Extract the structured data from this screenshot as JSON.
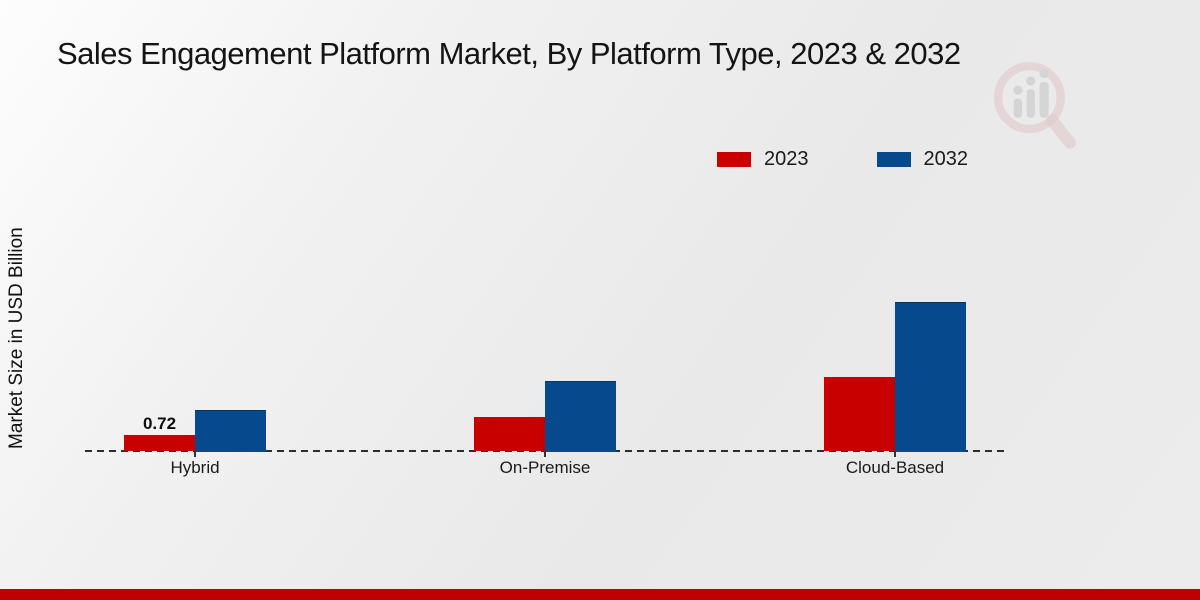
{
  "title": "Sales Engagement Platform Market, By Platform Type, 2023 & 2032",
  "ylabel": "Market Size in USD Billion",
  "chart_data": {
    "type": "bar",
    "title": "Sales Engagement Platform Market, By Platform Type, 2023 & 2032",
    "categories": [
      "Hybrid",
      "On-Premise",
      "Cloud-Based"
    ],
    "series": [
      {
        "name": "2023",
        "color": "#c80000",
        "values": [
          0.72,
          1.55,
          3.4
        ]
      },
      {
        "name": "2032",
        "color": "#06498c",
        "values": [
          1.9,
          3.2,
          6.85
        ]
      }
    ],
    "bar_labels": [
      {
        "category_index": 0,
        "series_index": 0,
        "text": "0.72"
      }
    ],
    "xlabel": "",
    "ylabel": "Market Size in USD Billion",
    "ylim": [
      0,
      7.5
    ],
    "grid": false,
    "legend_position": "top-right",
    "baseline_style": "dashed"
  },
  "watermark": {
    "icon": "magnifier-bar-chart-logo"
  },
  "footer": {
    "color": "#bf0000"
  }
}
